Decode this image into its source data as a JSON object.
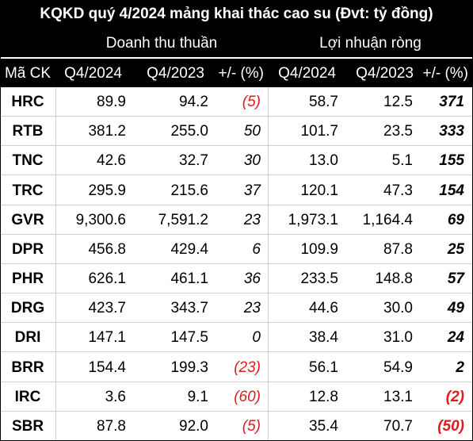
{
  "title": "KQKD quý 4/2024 mảng khai thác cao su (Đvt: tỷ đồng)",
  "groups": {
    "revenue": "Doanh thu thuần",
    "profit": "Lợi nhuận ròng"
  },
  "headers": {
    "code": "Mã CK",
    "rev_q4_2024": "Q4/2024",
    "rev_q4_2023": "Q4/2023",
    "rev_change": "+/- (%)",
    "pro_q4_2024": "Q4/2024",
    "pro_q4_2023": "Q4/2023",
    "pro_change": "+/- (%)"
  },
  "colors": {
    "header_bg": "#000000",
    "header_text": "#ffffff",
    "negative": "#e01b1b",
    "row_border": "#cfcfcf"
  },
  "rows": [
    {
      "code": "HRC",
      "rev24": "89.9",
      "rev23": "94.2",
      "revchg": "(5)",
      "pro24": "58.7",
      "pro23": "12.5",
      "prochg": "371"
    },
    {
      "code": "RTB",
      "rev24": "381.2",
      "rev23": "255.0",
      "revchg": "50",
      "pro24": "101.7",
      "pro23": "23.5",
      "prochg": "333"
    },
    {
      "code": "TNC",
      "rev24": "42.6",
      "rev23": "32.7",
      "revchg": "30",
      "pro24": "13.0",
      "pro23": "5.1",
      "prochg": "155"
    },
    {
      "code": "TRC",
      "rev24": "295.9",
      "rev23": "215.6",
      "revchg": "37",
      "pro24": "120.1",
      "pro23": "47.3",
      "prochg": "154"
    },
    {
      "code": "GVR",
      "rev24": "9,300.6",
      "rev23": "7,591.2",
      "revchg": "23",
      "pro24": "1,973.1",
      "pro23": "1,164.4",
      "prochg": "69"
    },
    {
      "code": "DPR",
      "rev24": "456.8",
      "rev23": "429.4",
      "revchg": "6",
      "pro24": "109.9",
      "pro23": "87.8",
      "prochg": "25"
    },
    {
      "code": "PHR",
      "rev24": "626.1",
      "rev23": "461.1",
      "revchg": "36",
      "pro24": "233.5",
      "pro23": "148.8",
      "prochg": "57"
    },
    {
      "code": "DRG",
      "rev24": "423.7",
      "rev23": "343.7",
      "revchg": "23",
      "pro24": "44.6",
      "pro23": "30.0",
      "prochg": "49"
    },
    {
      "code": "DRI",
      "rev24": "147.1",
      "rev23": "147.5",
      "revchg": "0",
      "pro24": "38.4",
      "pro23": "31.0",
      "prochg": "24"
    },
    {
      "code": "BRR",
      "rev24": "154.4",
      "rev23": "199.3",
      "revchg": "(23)",
      "pro24": "56.1",
      "pro23": "54.9",
      "prochg": "2"
    },
    {
      "code": "IRC",
      "rev24": "3.6",
      "rev23": "9.1",
      "revchg": "(60)",
      "pro24": "12.8",
      "pro23": "13.1",
      "prochg": "(2)"
    },
    {
      "code": "SBR",
      "rev24": "87.8",
      "rev23": "92.0",
      "revchg": "(5)",
      "pro24": "35.4",
      "pro23": "70.7",
      "prochg": "(50)"
    }
  ]
}
